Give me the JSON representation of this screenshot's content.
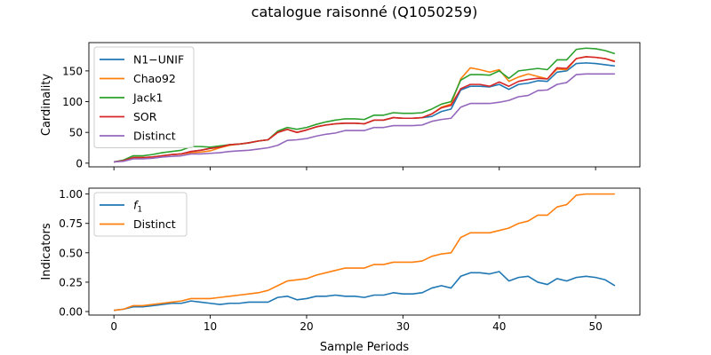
{
  "figure": {
    "title": "catalogue raisonné (Q1050259)",
    "xlabel": "Sample Periods"
  },
  "chart_data": [
    {
      "type": "line",
      "ylabel": "Cardinality",
      "xlim": [
        -2.6,
        54.6
      ],
      "ylim": [
        -6,
        196
      ],
      "xticks": [
        0,
        10,
        20,
        30,
        40,
        50
      ],
      "yticks": [
        0,
        50,
        100,
        150
      ],
      "ytick_labels": [
        "0",
        "50",
        "100",
        "150"
      ],
      "show_xtick_labels": false,
      "grid": false,
      "legend_position": "upper-left",
      "x": [
        0,
        1,
        2,
        3,
        4,
        5,
        6,
        7,
        8,
        9,
        10,
        11,
        12,
        13,
        14,
        15,
        16,
        17,
        18,
        19,
        20,
        21,
        22,
        23,
        24,
        25,
        26,
        27,
        28,
        29,
        30,
        31,
        32,
        33,
        34,
        35,
        36,
        37,
        38,
        39,
        40,
        41,
        42,
        43,
        44,
        45,
        46,
        47,
        48,
        49,
        50,
        51,
        52
      ],
      "series": [
        {
          "name": "N1−UNIF",
          "color": "#1f77b4",
          "values": [
            2,
            4,
            9,
            9,
            10,
            12,
            14,
            15,
            19,
            21,
            24,
            26,
            30,
            31,
            33,
            36,
            38,
            50,
            55,
            50,
            54,
            59,
            62,
            64,
            65,
            65,
            64,
            70,
            70,
            74,
            73,
            73,
            74,
            76,
            84,
            88,
            119,
            125,
            125,
            124,
            128,
            120,
            128,
            130,
            134,
            133,
            148,
            150,
            162,
            163,
            162,
            160,
            158
          ]
        },
        {
          "name": "Chao92",
          "color": "#ff7f0e",
          "values": [
            2,
            4,
            9,
            9,
            10,
            12,
            14,
            15,
            17,
            18,
            20,
            25,
            29,
            31,
            33,
            36,
            38,
            50,
            55,
            50,
            54,
            59,
            62,
            64,
            65,
            65,
            64,
            70,
            70,
            74,
            73,
            73,
            74,
            80,
            91,
            96,
            137,
            155,
            152,
            148,
            152,
            133,
            140,
            145,
            141,
            137,
            153,
            152,
            170,
            173,
            172,
            170,
            166
          ]
        },
        {
          "name": "Jack1",
          "color": "#2ca02c",
          "values": [
            2,
            5,
            12,
            12,
            14,
            17,
            19,
            21,
            27,
            27,
            26,
            28,
            30,
            31,
            33,
            36,
            38,
            52,
            58,
            55,
            58,
            63,
            67,
            70,
            72,
            72,
            71,
            78,
            78,
            82,
            81,
            81,
            82,
            88,
            96,
            100,
            135,
            144,
            144,
            143,
            150,
            138,
            150,
            152,
            154,
            152,
            168,
            168,
            185,
            187,
            186,
            183,
            178
          ]
        },
        {
          "name": "SOR",
          "color": "#d62728",
          "values": [
            2,
            4,
            9,
            9,
            10,
            12,
            14,
            15,
            19,
            21,
            24,
            26,
            30,
            31,
            33,
            36,
            38,
            50,
            55,
            50,
            54,
            59,
            62,
            64,
            65,
            65,
            64,
            70,
            70,
            74,
            73,
            73,
            74,
            80,
            90,
            94,
            121,
            128,
            128,
            125,
            132,
            125,
            133,
            136,
            138,
            137,
            155,
            154,
            170,
            173,
            172,
            170,
            165
          ]
        },
        {
          "name": "Distinct",
          "color": "#9467bd",
          "values": [
            2,
            3,
            7,
            7,
            8,
            10,
            11,
            12,
            15,
            15,
            16,
            17,
            19,
            20,
            21,
            23,
            25,
            29,
            37,
            38,
            40,
            44,
            47,
            49,
            53,
            53,
            53,
            58,
            58,
            61,
            61,
            61,
            62,
            68,
            71,
            73,
            91,
            97,
            97,
            97,
            99,
            102,
            108,
            110,
            118,
            119,
            128,
            131,
            144,
            145,
            145,
            145,
            145
          ]
        }
      ]
    },
    {
      "type": "line",
      "ylabel": "Indicators",
      "xlim": [
        -2.6,
        54.6
      ],
      "ylim": [
        -0.03,
        1.05
      ],
      "xticks": [
        0,
        10,
        20,
        30,
        40,
        50
      ],
      "xtick_labels": [
        "0",
        "10",
        "20",
        "30",
        "40",
        "50"
      ],
      "yticks": [
        0,
        0.25,
        0.5,
        0.75,
        1.0
      ],
      "ytick_labels": [
        "0.00",
        "0.25",
        "0.50",
        "0.75",
        "1.00"
      ],
      "grid": false,
      "legend_position": "upper-left",
      "x": [
        0,
        1,
        2,
        3,
        4,
        5,
        6,
        7,
        8,
        9,
        10,
        11,
        12,
        13,
        14,
        15,
        16,
        17,
        18,
        19,
        20,
        21,
        22,
        23,
        24,
        25,
        26,
        27,
        28,
        29,
        30,
        31,
        32,
        33,
        34,
        35,
        36,
        37,
        38,
        39,
        40,
        41,
        42,
        43,
        44,
        45,
        46,
        47,
        48,
        49,
        50,
        51,
        52
      ],
      "series": [
        {
          "name": "f",
          "name_subscript": "1",
          "color": "#1f77b4",
          "values": [
            0.01,
            0.02,
            0.04,
            0.04,
            0.05,
            0.06,
            0.07,
            0.07,
            0.09,
            0.08,
            0.07,
            0.06,
            0.07,
            0.07,
            0.08,
            0.08,
            0.08,
            0.12,
            0.13,
            0.1,
            0.11,
            0.13,
            0.13,
            0.14,
            0.13,
            0.13,
            0.12,
            0.14,
            0.14,
            0.16,
            0.15,
            0.15,
            0.16,
            0.2,
            0.22,
            0.2,
            0.3,
            0.33,
            0.33,
            0.32,
            0.34,
            0.26,
            0.29,
            0.3,
            0.25,
            0.23,
            0.28,
            0.26,
            0.29,
            0.3,
            0.29,
            0.27,
            0.22
          ]
        },
        {
          "name": "Distinct",
          "color": "#ff7f0e",
          "values": [
            0.01,
            0.02,
            0.05,
            0.05,
            0.06,
            0.07,
            0.08,
            0.09,
            0.11,
            0.11,
            0.11,
            0.12,
            0.13,
            0.14,
            0.15,
            0.16,
            0.18,
            0.22,
            0.26,
            0.27,
            0.28,
            0.31,
            0.33,
            0.35,
            0.37,
            0.37,
            0.37,
            0.4,
            0.4,
            0.42,
            0.42,
            0.42,
            0.43,
            0.47,
            0.49,
            0.5,
            0.63,
            0.67,
            0.67,
            0.67,
            0.69,
            0.71,
            0.75,
            0.77,
            0.82,
            0.82,
            0.89,
            0.91,
            0.99,
            1.0,
            1.0,
            1.0,
            1.0
          ]
        }
      ]
    }
  ]
}
